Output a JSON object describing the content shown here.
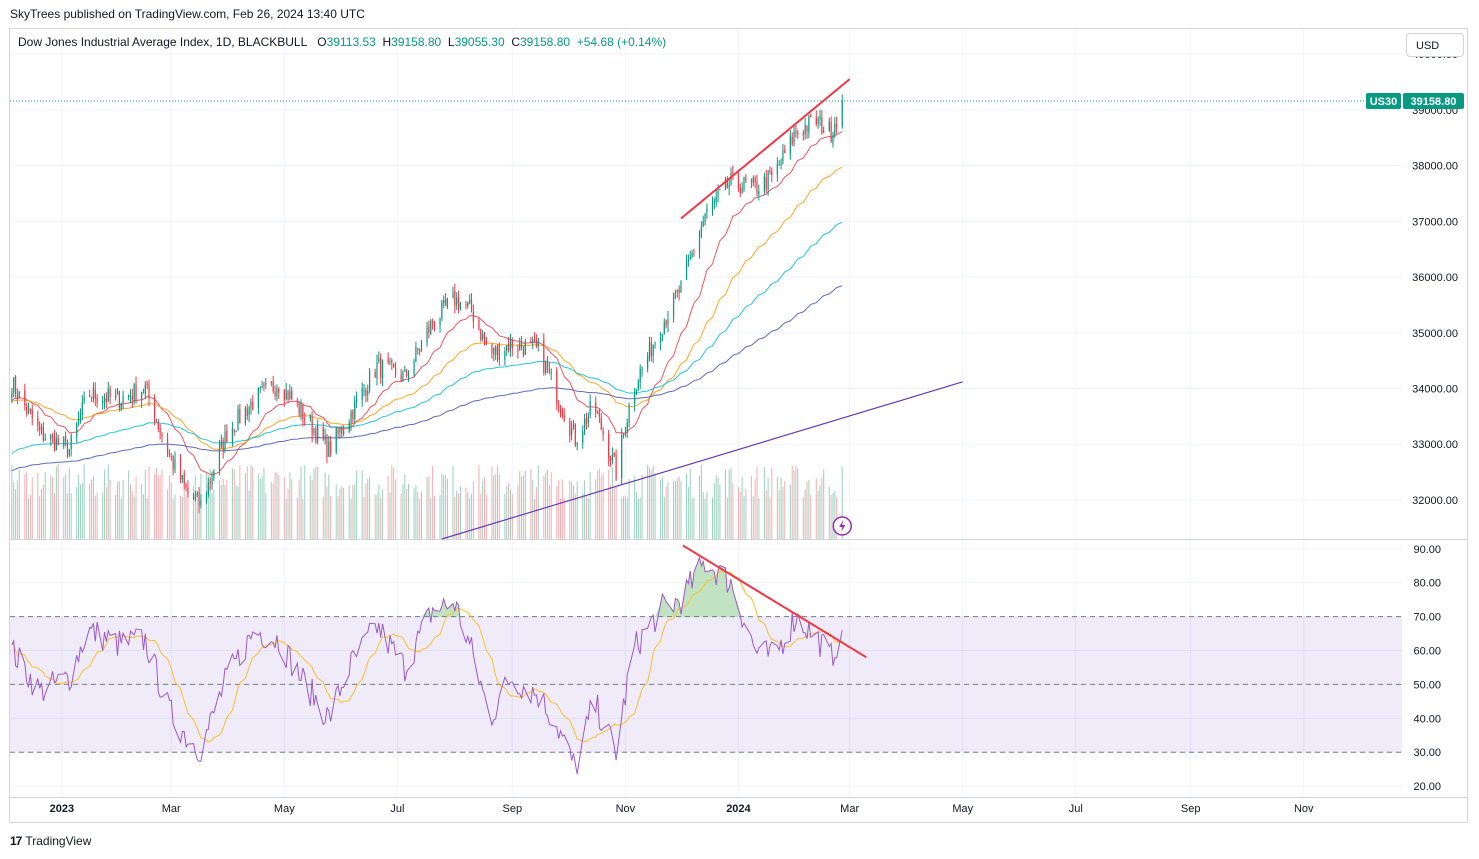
{
  "header": {
    "published": "SkyTrees published on TradingView.com, Feb 26, 2024 13:40 UTC"
  },
  "legend": {
    "symbol": "Dow Jones Industrial Average Index, 1D, BLACKBULL",
    "open_label": "O",
    "open": "39113.53",
    "high_label": "H",
    "high": "39158.80",
    "low_label": "L",
    "low": "39055.30",
    "close_label": "C",
    "close": "39158.80",
    "change": "+54.68 (+0.14%)"
  },
  "currency": "USD",
  "price_tag": {
    "ticker": "US30",
    "price": "39158.80"
  },
  "footer": {
    "brand": "TradingView",
    "logo": "tradingview-logo-icon"
  },
  "colors": {
    "up": "#089981",
    "down": "#f23645",
    "ema_red": "#f23645",
    "ema_orange": "#ff9800",
    "ema_cyan": "#00bcd4",
    "ema_blue": "#3f51b5",
    "rsi": "#9c59c9",
    "rsi_ma": "#fbc02d",
    "trendline": "#f23645",
    "support": "#673ab7"
  },
  "chart_data": [
    {
      "type": "candlestick",
      "panel": "price",
      "y_ticks": [
        "40000.00",
        "39000.00",
        "38000.00",
        "37000.00",
        "36000.00",
        "35000.00",
        "34000.00",
        "33000.00",
        "32000.00"
      ],
      "ylim": [
        31300,
        40450
      ],
      "x_ticks": [
        "2023",
        "Mar",
        "May",
        "Jul",
        "Sep",
        "Nov",
        "2024",
        "Mar",
        "May",
        "Jul",
        "Sep",
        "Nov"
      ],
      "x_tick_dates": [
        "2023-01-01",
        "2023-03-01",
        "2023-05-01",
        "2023-07-01",
        "2023-09-01",
        "2023-11-01",
        "2024-01-01",
        "2024-03-01",
        "2024-05-01",
        "2024-07-01",
        "2024-09-01",
        "2024-11-01"
      ],
      "x_range": [
        "2022-12-04",
        "2024-12-24"
      ],
      "close_anchors": [
        [
          "2022-12-05",
          34100
        ],
        [
          "2022-12-20",
          33200
        ],
        [
          "2023-01-05",
          32900
        ],
        [
          "2023-01-15",
          33900
        ],
        [
          "2023-01-31",
          33800
        ],
        [
          "2023-02-15",
          34000
        ],
        [
          "2023-02-28",
          32800
        ],
        [
          "2023-03-10",
          32100
        ],
        [
          "2023-03-17",
          31900
        ],
        [
          "2023-03-31",
          33200
        ],
        [
          "2023-04-15",
          33800
        ],
        [
          "2023-04-28",
          34100
        ],
        [
          "2023-05-10",
          33600
        ],
        [
          "2023-05-25",
          32900
        ],
        [
          "2023-06-05",
          33500
        ],
        [
          "2023-06-20",
          34400
        ],
        [
          "2023-07-05",
          34200
        ],
        [
          "2023-07-20",
          35200
        ],
        [
          "2023-08-01",
          35600
        ],
        [
          "2023-08-10",
          35400
        ],
        [
          "2023-08-20",
          34600
        ],
        [
          "2023-08-31",
          34800
        ],
        [
          "2023-09-15",
          34700
        ],
        [
          "2023-09-25",
          33900
        ],
        [
          "2023-10-05",
          33100
        ],
        [
          "2023-10-15",
          33700
        ],
        [
          "2023-10-27",
          32500
        ],
        [
          "2023-11-05",
          34000
        ],
        [
          "2023-11-20",
          35100
        ],
        [
          "2023-12-01",
          35800
        ],
        [
          "2023-12-14",
          37100
        ],
        [
          "2023-12-28",
          37700
        ],
        [
          "2024-01-10",
          37600
        ],
        [
          "2024-01-20",
          37800
        ],
        [
          "2024-02-01",
          38600
        ],
        [
          "2024-02-12",
          38800
        ],
        [
          "2024-02-20",
          38600
        ],
        [
          "2024-02-26",
          39158.8
        ]
      ],
      "series": [
        {
          "name": "EMA 20",
          "color": "#f23645",
          "period": 20
        },
        {
          "name": "EMA 50",
          "color": "#ff9800",
          "period": 50
        },
        {
          "name": "EMA 100",
          "color": "#00bcd4",
          "period": 100
        },
        {
          "name": "EMA 200",
          "color": "#3f51b5",
          "period": 200
        }
      ],
      "last_price": 39158.8,
      "annotations": [
        {
          "kind": "trendline",
          "color": "#f23645",
          "from": [
            "2023-12-01",
            37050
          ],
          "to": [
            "2024-03-01",
            39550
          ]
        },
        {
          "kind": "trendline",
          "color": "#673ab7",
          "from": [
            "2023-07-25",
            31300
          ],
          "to": [
            "2024-05-01",
            34120
          ]
        }
      ]
    },
    {
      "type": "bar",
      "panel": "volume",
      "note_levels": "relative volume bars colored by candle direction"
    },
    {
      "type": "line",
      "panel": "rsi",
      "y_ticks": [
        "90.00",
        "80.00",
        "70.00",
        "60.00",
        "50.00",
        "40.00",
        "30.00",
        "20.00"
      ],
      "ylim": [
        16.8,
        92.6
      ],
      "band": [
        30,
        70
      ],
      "midline": 50,
      "rsi_anchors": [
        [
          "2022-12-05",
          60
        ],
        [
          "2022-12-20",
          48
        ],
        [
          "2023-01-05",
          52
        ],
        [
          "2023-01-15",
          66
        ],
        [
          "2023-01-31",
          62
        ],
        [
          "2023-02-15",
          63
        ],
        [
          "2023-02-28",
          42
        ],
        [
          "2023-03-10",
          34
        ],
        [
          "2023-03-17",
          31
        ],
        [
          "2023-03-31",
          52
        ],
        [
          "2023-04-15",
          66
        ],
        [
          "2023-04-28",
          63
        ],
        [
          "2023-05-10",
          52
        ],
        [
          "2023-05-25",
          40
        ],
        [
          "2023-06-05",
          55
        ],
        [
          "2023-06-20",
          67
        ],
        [
          "2023-07-05",
          55
        ],
        [
          "2023-07-20",
          72
        ],
        [
          "2023-08-01",
          74
        ],
        [
          "2023-08-10",
          60
        ],
        [
          "2023-08-20",
          40
        ],
        [
          "2023-08-31",
          52
        ],
        [
          "2023-09-15",
          47
        ],
        [
          "2023-09-25",
          38
        ],
        [
          "2023-10-05",
          25
        ],
        [
          "2023-10-15",
          45
        ],
        [
          "2023-10-27",
          30
        ],
        [
          "2023-11-05",
          60
        ],
        [
          "2023-11-20",
          72
        ],
        [
          "2023-12-01",
          75
        ],
        [
          "2023-12-14",
          86
        ],
        [
          "2023-12-28",
          80
        ],
        [
          "2024-01-10",
          60
        ],
        [
          "2024-01-20",
          58
        ],
        [
          "2024-02-01",
          70
        ],
        [
          "2024-02-12",
          64
        ],
        [
          "2024-02-20",
          58
        ],
        [
          "2024-02-26",
          66
        ]
      ],
      "series": [
        {
          "name": "RSI 14",
          "color": "#9c59c9"
        },
        {
          "name": "RSI MA",
          "color": "#fbc02d"
        }
      ],
      "annotations": [
        {
          "kind": "trendline",
          "color": "#f23645",
          "from": [
            "2023-12-02",
            91
          ],
          "to": [
            "2024-03-10",
            58
          ]
        }
      ]
    }
  ]
}
